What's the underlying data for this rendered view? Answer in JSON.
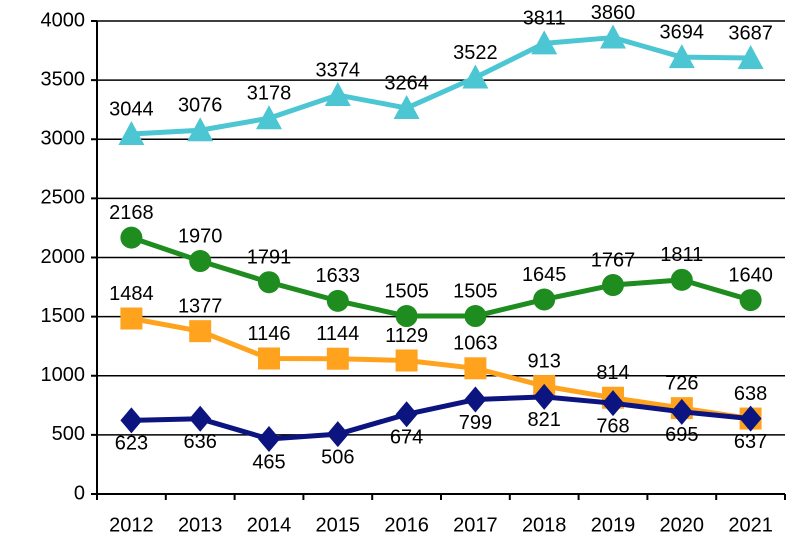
{
  "chart_data": {
    "type": "line",
    "categories": [
      "2012",
      "2013",
      "2014",
      "2015",
      "2016",
      "2017",
      "2018",
      "2019",
      "2020",
      "2021"
    ],
    "series": [
      {
        "color": "#4cc6d2",
        "marker": "triangle",
        "label_side": "above",
        "values": [
          3044,
          3076,
          3178,
          3374,
          3264,
          3522,
          3811,
          3860,
          3694,
          3687
        ]
      },
      {
        "color": "#1e8c1e",
        "marker": "circle",
        "label_side": "above",
        "values": [
          2168,
          1970,
          1791,
          1633,
          1505,
          1505,
          1645,
          1767,
          1811,
          1640
        ]
      },
      {
        "color": "#ffa31f",
        "marker": "square",
        "label_side": "above",
        "values": [
          1484,
          1377,
          1146,
          1144,
          1129,
          1063,
          913,
          814,
          726,
          638
        ]
      },
      {
        "color": "#0c1480",
        "marker": "diamond",
        "label_side": "below",
        "values": [
          623,
          636,
          465,
          506,
          674,
          799,
          821,
          768,
          695,
          637
        ]
      }
    ],
    "ylim": [
      0,
      4000
    ],
    "yticks": [
      0,
      500,
      1000,
      1500,
      2000,
      2500,
      3000,
      3500,
      4000
    ],
    "grid": true
  }
}
